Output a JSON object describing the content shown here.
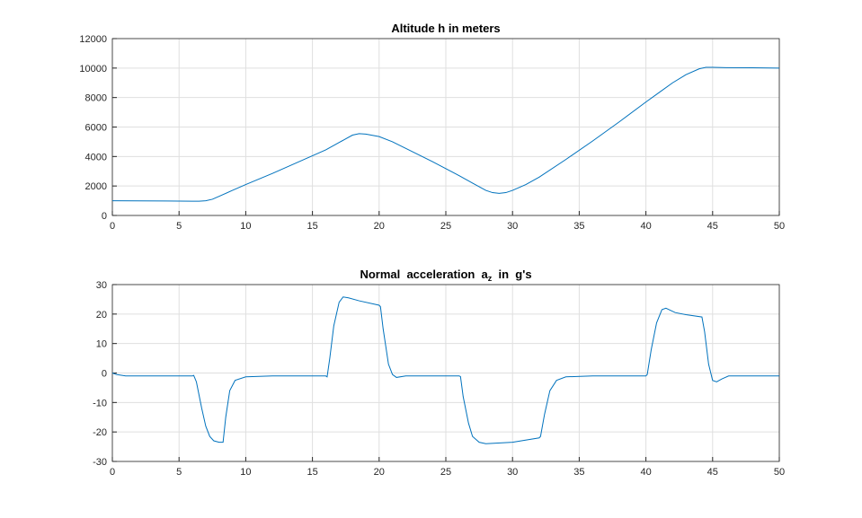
{
  "chart_data": [
    {
      "type": "line",
      "title": "Altitude h in meters",
      "grid": true,
      "xlim": [
        0,
        50
      ],
      "xticks": [
        0,
        5,
        10,
        15,
        20,
        25,
        30,
        35,
        40,
        45,
        50
      ],
      "ylim": [
        0,
        12000
      ],
      "yticks": [
        0,
        2000,
        4000,
        6000,
        8000,
        10000,
        12000
      ],
      "x": [
        0,
        2,
        4,
        6,
        6.5,
        7,
        7.5,
        8,
        9,
        10,
        12,
        14,
        16,
        17,
        18,
        18.5,
        19,
        20,
        21,
        22,
        24,
        26,
        27,
        28,
        28.5,
        29,
        29.5,
        30,
        31,
        32,
        34,
        36,
        38,
        40,
        41,
        42,
        43,
        44,
        44.5,
        45,
        46,
        48,
        50
      ],
      "series": [
        {
          "color": "#0072bd",
          "values": [
            1000,
            990,
            980,
            970,
            965,
            1000,
            1100,
            1300,
            1700,
            2100,
            2850,
            3650,
            4450,
            4950,
            5450,
            5550,
            5520,
            5350,
            5000,
            4550,
            3650,
            2700,
            2200,
            1700,
            1550,
            1500,
            1550,
            1700,
            2100,
            2600,
            3800,
            5050,
            6350,
            7700,
            8350,
            9000,
            9550,
            9950,
            10050,
            10050,
            10030,
            10020,
            10000
          ]
        }
      ]
    },
    {
      "type": "line",
      "title": "Normal  acceleration  a",
      "title_subscript": "z",
      "title_suffix": "  in  g's",
      "grid": true,
      "xlim": [
        0,
        50
      ],
      "xticks": [
        0,
        5,
        10,
        15,
        20,
        25,
        30,
        35,
        40,
        45,
        50
      ],
      "ylim": [
        -30,
        30
      ],
      "yticks": [
        -30,
        -20,
        -10,
        0,
        10,
        20,
        30
      ],
      "x": [
        0,
        0.3,
        1,
        3,
        6,
        6.1,
        6.3,
        6.7,
        7,
        7.3,
        7.6,
        8,
        8.3,
        8.5,
        8.8,
        9.2,
        10,
        12,
        16,
        16.1,
        16.3,
        16.6,
        17,
        17.3,
        17.7,
        18.5,
        20,
        20.1,
        20.3,
        20.7,
        21,
        21.3,
        22,
        26,
        26.1,
        26.3,
        26.7,
        27,
        27.5,
        28,
        30,
        32,
        32.1,
        32.4,
        32.8,
        33.3,
        34,
        36,
        40,
        40.1,
        40.4,
        40.8,
        41.2,
        41.5,
        42.2,
        43,
        44.2,
        44.4,
        44.7,
        45,
        45.3,
        45.7,
        46.2,
        47,
        50
      ],
      "series": [
        {
          "color": "#0072bd",
          "values": [
            0,
            -0.5,
            -1,
            -1,
            -1,
            -0.8,
            -3,
            -12,
            -18,
            -21.5,
            -23,
            -23.5,
            -23.5,
            -15,
            -6,
            -2.5,
            -1.3,
            -1,
            -1,
            -1.3,
            5,
            16,
            24,
            25.8,
            25.5,
            24.5,
            23,
            22.5,
            15,
            3,
            -0.5,
            -1.5,
            -1,
            -1,
            -1.2,
            -8,
            -17,
            -21.5,
            -23.5,
            -24,
            -23.5,
            -22,
            -21.5,
            -14,
            -6,
            -2.5,
            -1.3,
            -1,
            -1,
            -0.5,
            8,
            17,
            21.5,
            22,
            20.5,
            19.8,
            19,
            14,
            3,
            -2.5,
            -3,
            -2,
            -1,
            -1,
            -1
          ]
        }
      ]
    }
  ]
}
